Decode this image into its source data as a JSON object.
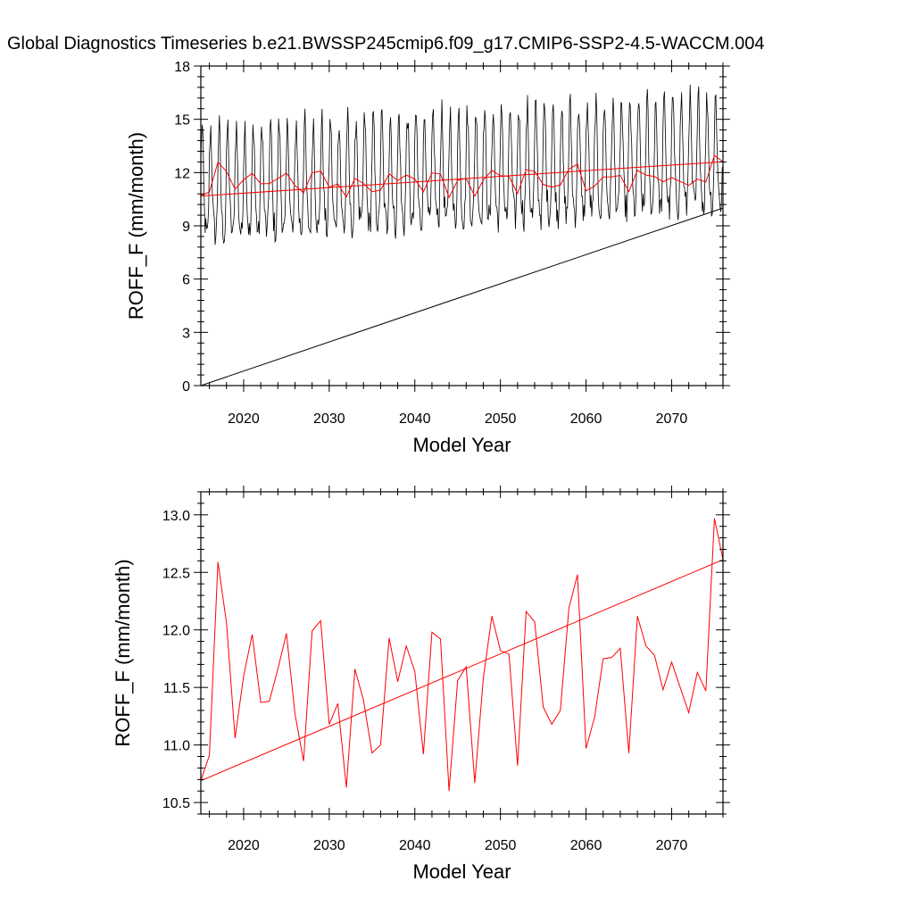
{
  "title": "Global Diagnostics Timeseries b.e21.BWSSP245cmip6.f09_g17.CMIP6-SSP2-4.5-WACCM.004",
  "colors": {
    "monthly": "#000000",
    "annual": "#ff0000",
    "frame": "#000000"
  },
  "chart_data": [
    {
      "type": "line",
      "ylabel": "ROFF_F (mm/month)",
      "xlabel": "Model Year",
      "xlim": [
        2015,
        2076
      ],
      "ylim": [
        0,
        18
      ],
      "xticks": [
        2020,
        2030,
        2040,
        2050,
        2060,
        2070
      ],
      "yticks": [
        0,
        3,
        6,
        9,
        12,
        15,
        18
      ],
      "ytick_labels": [
        "0",
        "3",
        "6",
        "9",
        "12",
        "15",
        "18"
      ],
      "xtick_labels": [
        "2020",
        "2030",
        "2040",
        "2050",
        "2060",
        "2070"
      ],
      "series": [
        {
          "name": "monthly ROFF_F",
          "color": "#000000",
          "kind": "monthly",
          "start": 2015.0,
          "months": 732,
          "mean": 11.7,
          "amplitude": 3.0,
          "trend_per_year": 0.03
        },
        {
          "name": "diagonal reference",
          "color": "#000000",
          "kind": "line",
          "points": [
            [
              2015,
              0
            ],
            [
              2076,
              10.0
            ]
          ]
        },
        {
          "name": "annual mean ROFF_F",
          "color": "#ff0000",
          "kind": "annual"
        },
        {
          "name": "linear trend",
          "color": "#ff0000",
          "kind": "line",
          "points": [
            [
              2015,
              10.68
            ],
            [
              2076,
              12.61
            ]
          ]
        }
      ]
    },
    {
      "type": "line",
      "ylabel": "ROFF_F (mm/month)",
      "xlabel": "Model Year",
      "xlim": [
        2015,
        2076
      ],
      "ylim": [
        10.4,
        13.2
      ],
      "xticks": [
        2020,
        2030,
        2040,
        2050,
        2060,
        2070
      ],
      "yticks": [
        10.5,
        11.0,
        11.5,
        12.0,
        12.5,
        13.0
      ],
      "ytick_labels": [
        "10.5",
        "11.0",
        "11.5",
        "12.0",
        "12.5",
        "13.0"
      ],
      "xtick_labels": [
        "2020",
        "2030",
        "2040",
        "2050",
        "2060",
        "2070"
      ],
      "series": [
        {
          "name": "annual mean ROFF_F",
          "color": "#ff0000",
          "kind": "annual"
        },
        {
          "name": "linear trend",
          "color": "#ff0000",
          "kind": "line",
          "points": [
            [
              2015,
              10.69
            ],
            [
              2076,
              12.61
            ]
          ]
        }
      ]
    }
  ],
  "annual_means": {
    "x": [
      2015.0,
      2016.0,
      2017.0,
      2018.0,
      2019.0,
      2020.0,
      2021.0,
      2022.0,
      2023.0,
      2024.0,
      2025.0,
      2026.0,
      2027.0,
      2028.0,
      2029.0,
      2030.0,
      2031.0,
      2032.0,
      2033.0,
      2034.0,
      2035.0,
      2036.0,
      2037.0,
      2038.0,
      2039.0,
      2040.0,
      2041.0,
      2042.0,
      2043.0,
      2044.0,
      2045.0,
      2046.0,
      2047.0,
      2048.0,
      2049.0,
      2050.0,
      2051.0,
      2052.0,
      2053.0,
      2054.0,
      2055.0,
      2056.0,
      2057.0,
      2058.0,
      2059.0,
      2060.0,
      2061.0,
      2062.0,
      2063.0,
      2064.0,
      2065.0,
      2066.0,
      2067.0,
      2068.0,
      2069.0,
      2070.0,
      2071.0,
      2072.0,
      2073.0,
      2074.0,
      2075.0,
      2076.0
    ],
    "values": [
      10.69,
      10.91,
      12.59,
      12.06,
      11.06,
      11.6,
      11.96,
      11.37,
      11.38,
      11.66,
      11.97,
      11.27,
      10.86,
      11.99,
      12.08,
      11.18,
      11.36,
      10.63,
      11.66,
      11.39,
      10.93,
      11.0,
      11.93,
      11.55,
      11.86,
      11.64,
      10.92,
      11.98,
      11.92,
      10.6,
      11.56,
      11.68,
      10.67,
      11.58,
      12.12,
      11.82,
      11.79,
      10.82,
      12.16,
      12.07,
      11.33,
      11.18,
      11.3,
      12.19,
      12.48,
      10.97,
      11.24,
      11.75,
      11.76,
      11.84,
      10.93,
      12.12,
      11.86,
      11.78,
      11.48,
      11.72,
      11.5,
      11.28,
      11.63,
      11.47,
      12.97,
      12.61
    ]
  }
}
